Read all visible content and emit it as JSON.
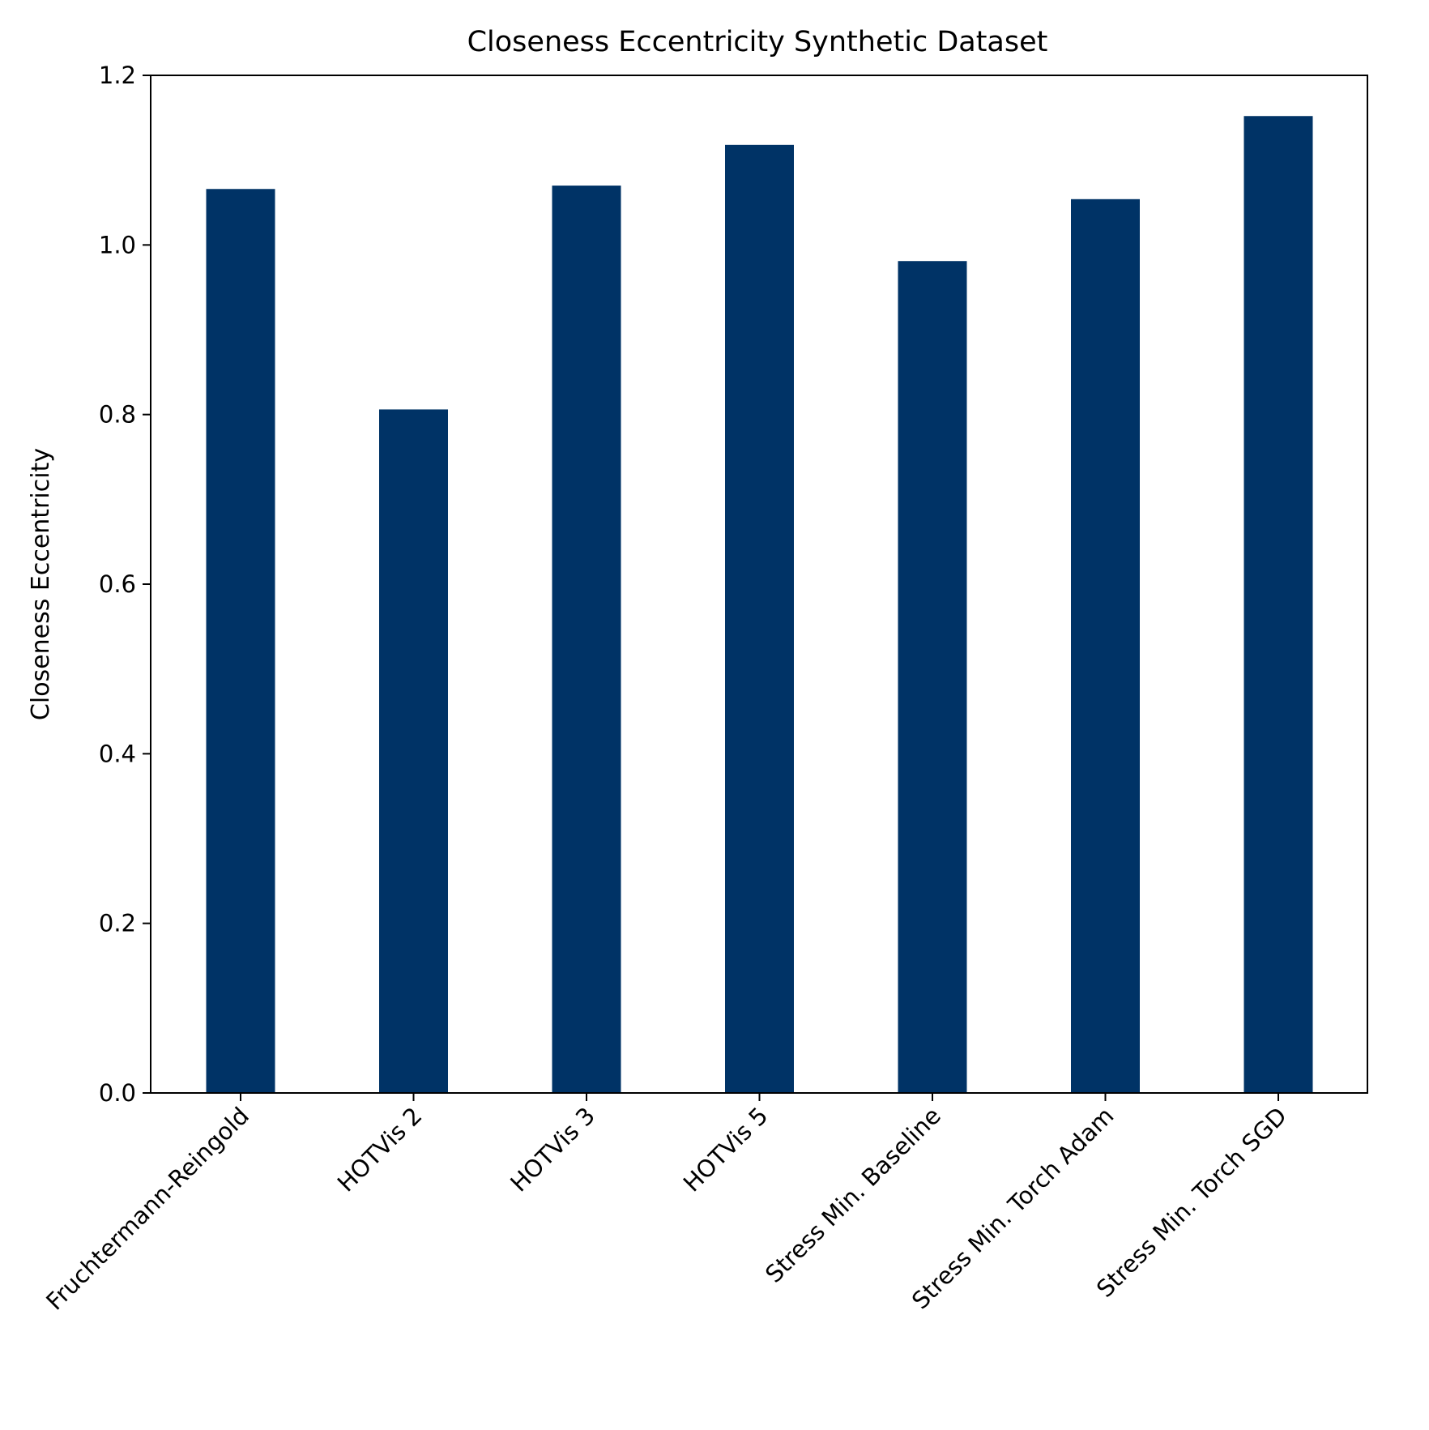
{
  "chart_data": {
    "type": "bar",
    "title": "Closeness Eccentricity Synthetic Dataset",
    "xlabel": "",
    "ylabel": "Closeness Eccentricity",
    "categories": [
      "Fruchtermann-Reingold",
      "HOTVis 2",
      "HOTVis 3",
      "HOTVis 5",
      "Stress Min. Baseline",
      "Stress Min. Torch Adam",
      "Stress Min. Torch SGD"
    ],
    "values": [
      1.066,
      0.806,
      1.07,
      1.118,
      0.981,
      1.054,
      1.152
    ],
    "ylim": [
      0.0,
      1.2
    ],
    "yticks": [
      0.0,
      0.2,
      0.4,
      0.6,
      0.8,
      1.0,
      1.2
    ],
    "ytick_labels": [
      "0.0",
      "0.2",
      "0.4",
      "0.6",
      "0.8",
      "1.0",
      "1.2"
    ],
    "grid": false,
    "legend": "none",
    "bar_color": "#003366"
  }
}
